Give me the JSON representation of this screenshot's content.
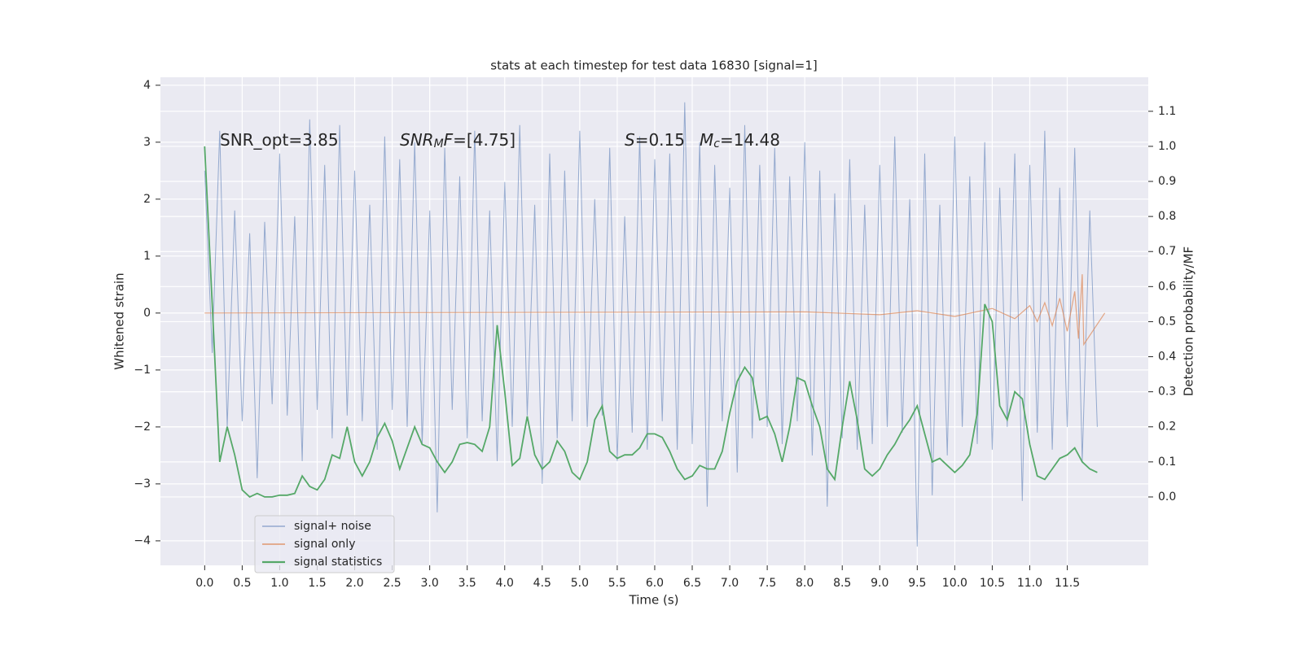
{
  "chart_data": {
    "type": "line",
    "title": "stats at each timestep for test data 16830 [signal=1]",
    "x_label": "Time (s)",
    "y_label": "Whitened strain",
    "y2_label": "Detection probability/MF",
    "annotations": [
      [
        "SNR_opt=3.85"
      ],
      [
        "SNR",
        "M",
        "F",
        "=[4.75]"
      ],
      [
        "S",
        "=0.15"
      ],
      [
        "M",
        "c",
        "=14.48"
      ]
    ],
    "xlim": [
      -0.59,
      12.58
    ],
    "ylim": [
      -4.43,
      4.14
    ],
    "y2lim": [
      -0.195,
      1.197
    ],
    "xticks": [
      {
        "value": 0,
        "label": "0.0"
      },
      0.5,
      {
        "value": 1,
        "label": "1.0"
      },
      1.5,
      {
        "value": 2,
        "label": "2.0"
      },
      2.5,
      {
        "value": 3,
        "label": "3.0"
      },
      3.5,
      {
        "value": 4,
        "label": "4.0"
      },
      4.5,
      {
        "value": 5,
        "label": "5.0"
      },
      5.5,
      {
        "value": 6,
        "label": "6.0"
      },
      6.5,
      {
        "value": 7,
        "label": "7.0"
      },
      7.5,
      {
        "value": 8,
        "label": "8.0"
      },
      8.5,
      {
        "value": 9,
        "label": "9.0"
      },
      9.5,
      {
        "value": 10,
        "label": "10.0"
      },
      10.5,
      {
        "value": 11,
        "label": "11.0"
      },
      11.5
    ],
    "yticks": [
      {
        "value": -4,
        "label": "−4"
      },
      {
        "value": -3,
        "label": "−3"
      },
      {
        "value": -2,
        "label": "−2"
      },
      {
        "value": -1,
        "label": "−1"
      },
      0,
      1,
      2,
      3,
      4
    ],
    "y2ticks": [
      {
        "value": 0,
        "label": "0.0"
      },
      0.1,
      0.2,
      0.3,
      0.4,
      0.5,
      0.6,
      0.7,
      0.8,
      0.9,
      {
        "value": 1,
        "label": "1.0"
      },
      1.1
    ],
    "grid": true,
    "legend": "lower left",
    "series": [
      {
        "name": "signal+ noise",
        "color": "#4c72b0",
        "x": [
          0.0,
          0.1,
          0.2,
          0.3,
          0.4,
          0.5,
          0.6,
          0.7,
          0.8,
          0.9,
          1.0,
          1.1,
          1.2,
          1.3,
          1.4,
          1.5,
          1.6,
          1.7,
          1.8,
          1.9,
          2.0,
          2.1,
          2.2,
          2.3,
          2.4,
          2.5,
          2.6,
          2.7,
          2.8,
          2.9,
          3.0,
          3.1,
          3.2,
          3.3,
          3.4,
          3.5,
          3.6,
          3.7,
          3.8,
          3.9,
          4.0,
          4.1,
          4.2,
          4.3,
          4.4,
          4.5,
          4.6,
          4.7,
          4.8,
          4.9,
          5.0,
          5.1,
          5.2,
          5.3,
          5.4,
          5.5,
          5.6,
          5.7,
          5.8,
          5.9,
          6.0,
          6.1,
          6.2,
          6.3,
          6.4,
          6.5,
          6.6,
          6.7,
          6.8,
          6.9,
          7.0,
          7.1,
          7.2,
          7.3,
          7.4,
          7.5,
          7.6,
          7.7,
          7.8,
          7.9,
          8.0,
          8.1,
          8.2,
          8.3,
          8.4,
          8.5,
          8.6,
          8.7,
          8.8,
          8.9,
          9.0,
          9.1,
          9.2,
          9.3,
          9.4,
          9.5,
          9.6,
          9.7,
          9.8,
          9.9,
          10.0,
          10.1,
          10.2,
          10.3,
          10.4,
          10.5,
          10.6,
          10.7,
          10.8,
          10.9,
          11.0,
          11.1,
          11.2,
          11.3,
          11.4,
          11.5,
          11.6,
          11.7,
          11.8,
          11.9
        ],
        "values": [
          2.5,
          -0.7,
          3.2,
          -2.0,
          1.8,
          -1.9,
          1.4,
          -2.9,
          1.6,
          -1.6,
          2.8,
          -1.8,
          1.7,
          -2.6,
          3.4,
          -1.7,
          2.6,
          -2.2,
          3.3,
          -1.8,
          2.5,
          -1.9,
          1.9,
          -2.4,
          3.1,
          -1.7,
          2.7,
          -2.0,
          3.0,
          -2.3,
          1.8,
          -3.5,
          2.9,
          -1.7,
          2.4,
          -2.2,
          3.2,
          -1.9,
          1.8,
          -2.6,
          2.3,
          -2.0,
          3.3,
          -1.8,
          1.9,
          -3.0,
          2.8,
          -2.2,
          2.5,
          -1.9,
          3.2,
          -2.0,
          2.0,
          -1.8,
          2.9,
          -2.6,
          1.7,
          -2.1,
          3.1,
          -2.4,
          2.7,
          -1.9,
          2.8,
          -2.4,
          3.7,
          -2.3,
          3.0,
          -3.4,
          2.6,
          -1.9,
          2.2,
          -2.8,
          3.3,
          -2.2,
          2.6,
          -2.0,
          2.9,
          -2.3,
          2.4,
          -1.9,
          3.0,
          -2.5,
          2.5,
          -3.4,
          2.1,
          -2.2,
          2.7,
          -2.4,
          1.9,
          -2.3,
          2.6,
          -2.0,
          3.1,
          -2.1,
          2.0,
          -4.1,
          2.8,
          -3.2,
          1.9,
          -2.5,
          3.1,
          -2.0,
          2.4,
          -2.3,
          3.0,
          -2.4,
          2.2,
          -2.0,
          2.8,
          -3.3,
          2.6,
          -2.1,
          3.2,
          -2.4,
          2.2,
          -2.0,
          2.9,
          -2.6,
          1.8,
          -2.0
        ]
      },
      {
        "name": "signal only",
        "color": "#dd8452",
        "x": [
          0.0,
          8.0,
          9.0,
          9.5,
          10.0,
          10.5,
          10.8,
          11.0,
          11.1,
          11.2,
          11.3,
          11.4,
          11.5,
          11.6,
          11.65,
          11.7,
          11.72,
          12.0
        ],
        "values": [
          0,
          0.02,
          -0.03,
          0.04,
          -0.06,
          0.08,
          -0.1,
          0.13,
          -0.15,
          0.18,
          -0.22,
          0.26,
          -0.32,
          0.38,
          -0.45,
          0.68,
          -0.55,
          0
        ]
      },
      {
        "name": "signal statistics",
        "color": "#55a868",
        "axis": "y2",
        "x": [
          0.0,
          0.1,
          0.2,
          0.3,
          0.4,
          0.5,
          0.6,
          0.7,
          0.8,
          0.9,
          1.0,
          1.1,
          1.2,
          1.3,
          1.4,
          1.5,
          1.6,
          1.7,
          1.8,
          1.9,
          2.0,
          2.1,
          2.2,
          2.3,
          2.4,
          2.5,
          2.6,
          2.7,
          2.8,
          2.9,
          3.0,
          3.1,
          3.2,
          3.3,
          3.4,
          3.5,
          3.6,
          3.7,
          3.8,
          3.9,
          4.0,
          4.1,
          4.2,
          4.3,
          4.4,
          4.5,
          4.6,
          4.7,
          4.8,
          4.9,
          5.0,
          5.1,
          5.2,
          5.3,
          5.4,
          5.5,
          5.6,
          5.7,
          5.8,
          5.9,
          6.0,
          6.1,
          6.2,
          6.3,
          6.4,
          6.5,
          6.6,
          6.7,
          6.8,
          6.9,
          7.0,
          7.1,
          7.2,
          7.3,
          7.4,
          7.5,
          7.6,
          7.7,
          7.8,
          7.9,
          8.0,
          8.1,
          8.2,
          8.3,
          8.4,
          8.5,
          8.6,
          8.7,
          8.8,
          8.9,
          9.0,
          9.1,
          9.2,
          9.3,
          9.4,
          9.5,
          9.6,
          9.7,
          9.8,
          9.9,
          10.0,
          10.1,
          10.2,
          10.3,
          10.4,
          10.5,
          10.6,
          10.7,
          10.8,
          10.9,
          11.0,
          11.1,
          11.2,
          11.3,
          11.4,
          11.5,
          11.6,
          11.7,
          11.8,
          11.9
        ],
        "values": [
          1.0,
          0.55,
          0.1,
          0.2,
          0.12,
          0.02,
          0.0,
          0.01,
          0.0,
          0.0,
          0.005,
          0.005,
          0.01,
          0.06,
          0.03,
          0.02,
          0.05,
          0.12,
          0.11,
          0.2,
          0.1,
          0.06,
          0.1,
          0.17,
          0.21,
          0.16,
          0.08,
          0.14,
          0.2,
          0.15,
          0.14,
          0.1,
          0.07,
          0.1,
          0.15,
          0.155,
          0.15,
          0.13,
          0.2,
          0.49,
          0.3,
          0.09,
          0.11,
          0.23,
          0.12,
          0.08,
          0.1,
          0.16,
          0.13,
          0.07,
          0.05,
          0.1,
          0.22,
          0.26,
          0.13,
          0.11,
          0.12,
          0.12,
          0.14,
          0.18,
          0.18,
          0.17,
          0.13,
          0.08,
          0.05,
          0.06,
          0.09,
          0.08,
          0.08,
          0.13,
          0.24,
          0.33,
          0.37,
          0.34,
          0.22,
          0.23,
          0.18,
          0.1,
          0.2,
          0.34,
          0.33,
          0.26,
          0.2,
          0.08,
          0.05,
          0.2,
          0.33,
          0.22,
          0.08,
          0.06,
          0.08,
          0.12,
          0.15,
          0.19,
          0.22,
          0.26,
          0.18,
          0.1,
          0.11,
          0.09,
          0.07,
          0.09,
          0.12,
          0.24,
          0.55,
          0.5,
          0.26,
          0.22,
          0.3,
          0.28,
          0.15,
          0.06,
          0.05,
          0.08,
          0.11,
          0.12,
          0.14,
          0.1,
          0.08,
          0.07
        ]
      }
    ]
  }
}
